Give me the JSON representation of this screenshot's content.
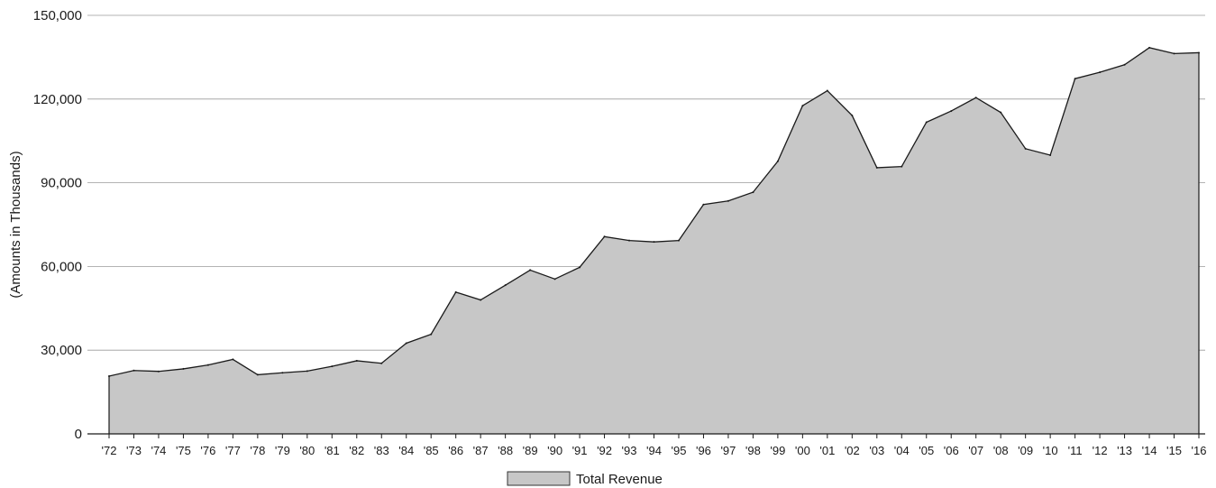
{
  "chart_data": {
    "type": "area",
    "title": "",
    "xlabel": "",
    "ylabel": "(Amounts in Thousands)",
    "categories": [
      "'72",
      "'73",
      "'74",
      "'75",
      "'76",
      "'77",
      "'78",
      "'79",
      "'80",
      "'81",
      "'82",
      "'83",
      "'84",
      "'85",
      "'86",
      "'87",
      "'88",
      "'89",
      "'90",
      "'91",
      "'92",
      "'93",
      "'94",
      "'95",
      "'96",
      "'97",
      "'98",
      "'99",
      "'00",
      "'01",
      "'02",
      "'03",
      "'04",
      "'05",
      "'06",
      "'07",
      "'08",
      "'09",
      "'10",
      "'11",
      "'12",
      "'13",
      "'14",
      "'15",
      "'16"
    ],
    "yticks": [
      "0",
      "30,000",
      "60,000",
      "90,000",
      "120,000",
      "150,000"
    ],
    "ylim": [
      0,
      150000
    ],
    "grid": true,
    "legend_position": "bottom-center",
    "series": [
      {
        "name": "Total Revenue",
        "color": "#c7c7c7",
        "values": [
          20700,
          22700,
          22400,
          23300,
          24700,
          26700,
          21200,
          21900,
          22500,
          24200,
          26200,
          25300,
          32500,
          35700,
          50800,
          48000,
          53300,
          58700,
          55500,
          59700,
          70700,
          69300,
          68800,
          69300,
          82200,
          83500,
          86600,
          97700,
          117600,
          123000,
          114100,
          95400,
          95800,
          111700,
          115700,
          120500,
          115200,
          102200,
          99900,
          127300,
          129600,
          132300,
          138400,
          136300,
          136600
        ]
      }
    ]
  }
}
